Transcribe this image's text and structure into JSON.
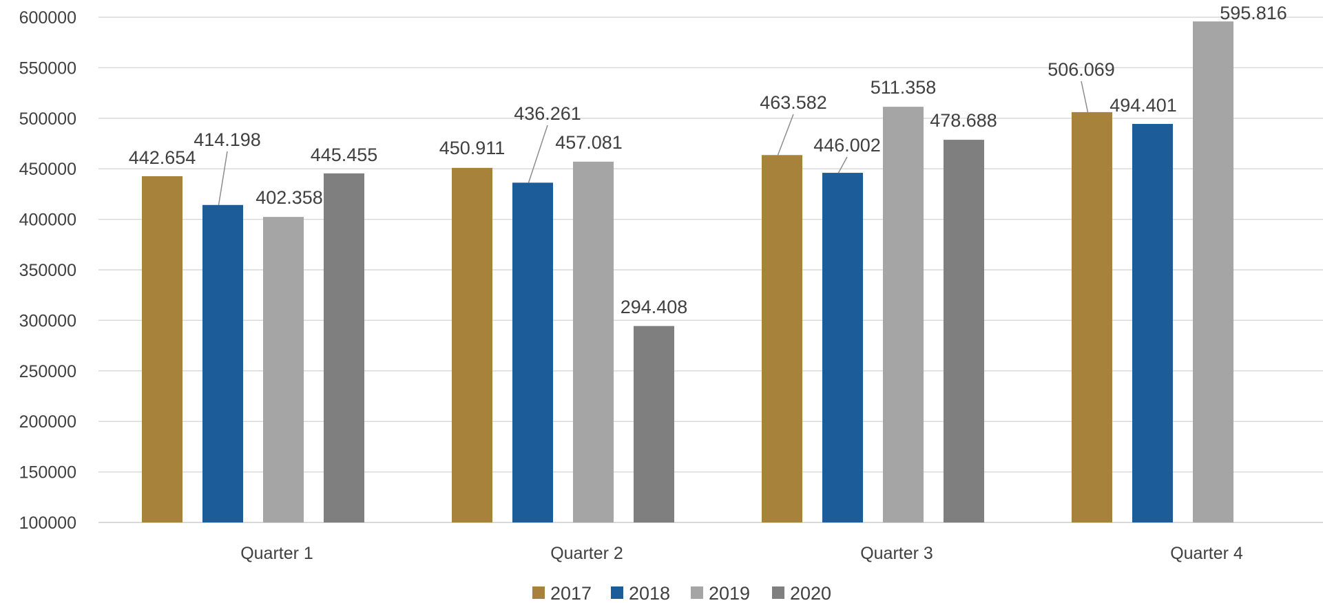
{
  "chart_data": {
    "type": "bar",
    "categories": [
      "Quarter 1",
      "Quarter 2",
      "Quarter 3",
      "Quarter 4"
    ],
    "series": [
      {
        "name": "2017",
        "color": "#a6823a",
        "values": [
          442654,
          450911,
          463582,
          506069
        ],
        "labels": [
          "442.654",
          "450.911",
          "463.582",
          "506.069"
        ]
      },
      {
        "name": "2018",
        "color": "#1c5d99",
        "values": [
          414198,
          436261,
          446002,
          494401
        ],
        "labels": [
          "414.198",
          "436.261",
          "446.002",
          "494.401"
        ]
      },
      {
        "name": "2019",
        "color": "#a5a5a5",
        "values": [
          402358,
          457081,
          511358,
          595816
        ],
        "labels": [
          "402.358",
          "457.081",
          "511.358",
          "595.816"
        ]
      },
      {
        "name": "2020",
        "color": "#7f7f7f",
        "values": [
          445455,
          294408,
          478688,
          null
        ],
        "labels": [
          "445.455",
          "294.408",
          "478.688",
          null
        ]
      }
    ],
    "yticks": [
      "100000",
      "150000",
      "200000",
      "250000",
      "300000",
      "350000",
      "400000",
      "450000",
      "500000",
      "550000",
      "600000"
    ],
    "ylim": [
      100000,
      600000
    ],
    "grid": true,
    "legend": "bottom"
  }
}
